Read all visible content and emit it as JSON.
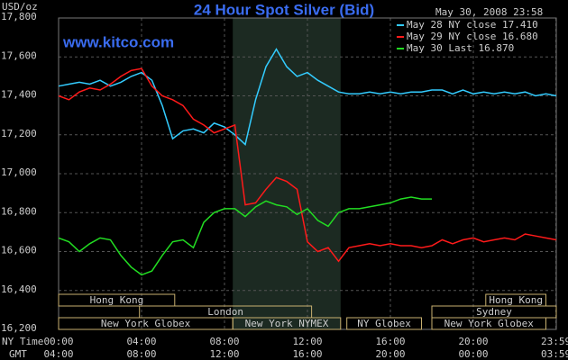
{
  "chart_data": {
    "type": "line",
    "title": "24 Hour Spot Silver (Bid)",
    "timestamp": "May 30, 2008 23:58",
    "watermark": "www.kitco.com",
    "y_label": "USD/oz",
    "x_axis_labels": [
      "NY Time",
      "GMT"
    ],
    "x": [
      0,
      0.5,
      1,
      1.5,
      2,
      2.5,
      3,
      3.5,
      4,
      4.5,
      5,
      5.5,
      6,
      6.5,
      7,
      7.5,
      8,
      8.5,
      9,
      9.5,
      10,
      10.5,
      11,
      11.5,
      12,
      12.5,
      13,
      13.5,
      14,
      14.5,
      15,
      15.5,
      16,
      16.5,
      17,
      17.5,
      18,
      18.5,
      19,
      19.5,
      20,
      20.5,
      21,
      21.5,
      22,
      22.5,
      23,
      23.5,
      24
    ],
    "series": [
      {
        "name": "May 28 NY close 17.410",
        "color": "#33ccff",
        "values": [
          17.45,
          17.46,
          17.47,
          17.46,
          17.48,
          17.45,
          17.47,
          17.5,
          17.52,
          17.48,
          17.35,
          17.18,
          17.22,
          17.23,
          17.21,
          17.26,
          17.24,
          17.2,
          17.15,
          17.38,
          17.55,
          17.64,
          17.55,
          17.5,
          17.52,
          17.48,
          17.45,
          17.42,
          17.41,
          17.41,
          17.42,
          17.41,
          17.42,
          17.41,
          17.42,
          17.42,
          17.43,
          17.43,
          17.41,
          17.43,
          17.41,
          17.42,
          17.41,
          17.42,
          17.41,
          17.42,
          17.4,
          17.41,
          17.4
        ]
      },
      {
        "name": "May 29 NY close 16.680",
        "color": "#ff1a1a",
        "values": [
          17.4,
          17.38,
          17.42,
          17.44,
          17.43,
          17.46,
          17.5,
          17.53,
          17.54,
          17.45,
          17.4,
          17.38,
          17.35,
          17.28,
          17.25,
          17.21,
          17.23,
          17.25,
          16.84,
          16.85,
          16.92,
          16.98,
          16.96,
          16.92,
          16.65,
          16.6,
          16.62,
          16.55,
          16.62,
          16.63,
          16.64,
          16.63,
          16.64,
          16.63,
          16.63,
          16.62,
          16.63,
          16.66,
          16.64,
          16.66,
          16.67,
          16.65,
          16.66,
          16.67,
          16.66,
          16.69,
          16.68,
          16.67,
          16.66
        ]
      },
      {
        "name": "May 30 Last 16.870",
        "color": "#22dd22",
        "values": [
          16.67,
          16.65,
          16.6,
          16.64,
          16.67,
          16.66,
          16.58,
          16.52,
          16.48,
          16.5,
          16.58,
          16.65,
          16.66,
          16.62,
          16.75,
          16.8,
          16.82,
          16.82,
          16.78,
          16.83,
          16.86,
          16.84,
          16.83,
          16.79,
          16.82,
          16.76,
          16.73,
          16.8,
          16.82,
          16.82,
          16.83,
          16.84,
          16.85,
          16.87,
          16.88,
          16.87,
          16.87,
          null,
          null,
          null,
          null,
          null,
          null,
          null,
          null,
          null,
          null,
          null,
          null
        ]
      }
    ],
    "xlim": [
      0,
      24
    ],
    "xticks": [
      {
        "value": 0,
        "label": "00:00"
      },
      {
        "value": 4,
        "label": "04:00"
      },
      {
        "value": 8,
        "label": "08:00"
      },
      {
        "value": 12,
        "label": "12:00"
      },
      {
        "value": 16,
        "label": "16:00"
      },
      {
        "value": 20,
        "label": "20:00"
      },
      {
        "value": 23.983,
        "label": "23:59"
      }
    ],
    "gmt_labels": [
      "04:00",
      "08:00",
      "12:00",
      "16:00",
      "20:00",
      "00:00",
      "03:59"
    ],
    "ylim": [
      16.2,
      17.8
    ],
    "yticks": [
      {
        "value": 16.2,
        "label": "16,200"
      },
      {
        "value": 16.4,
        "label": "16,400"
      },
      {
        "value": 16.6,
        "label": "16,600"
      },
      {
        "value": 16.8,
        "label": "16,800"
      },
      {
        "value": 17.0,
        "label": "17,000"
      },
      {
        "value": 17.2,
        "label": "17,200"
      },
      {
        "value": 17.4,
        "label": "17,400"
      },
      {
        "value": 17.6,
        "label": "17,600"
      },
      {
        "value": 17.8,
        "label": "17,800"
      }
    ],
    "grid": true,
    "shaded": [
      8.4,
      13.6
    ],
    "sessions": [
      [
        {
          "label": "Hong Kong",
          "start": 0,
          "end": 5.6
        },
        {
          "label": "Hong Kong",
          "start": 20.6,
          "end": 23.5
        }
      ],
      [
        {
          "label": "London",
          "start": 3.9,
          "end": 12.2
        },
        {
          "label": "Sydney",
          "start": 18,
          "end": 24
        }
      ],
      [
        {
          "label": "New York Globex",
          "start": 0,
          "end": 8.4
        },
        {
          "label": "New York NYMEX",
          "start": 8.4,
          "end": 13.6
        },
        {
          "label": "NY Globex",
          "start": 13.9,
          "end": 17.5
        },
        {
          "label": "New York Globex",
          "start": 18,
          "end": 23.5
        }
      ]
    ]
  }
}
